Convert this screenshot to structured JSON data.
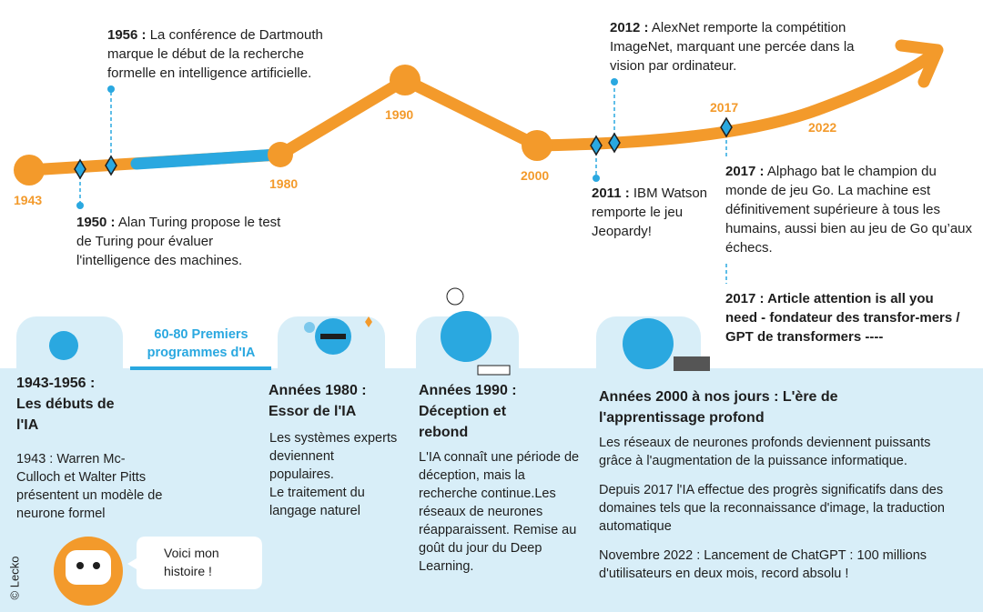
{
  "timeline": {
    "labels": [
      "1943",
      "1980",
      "1990",
      "2000",
      "2017",
      "2022"
    ],
    "events": [
      {
        "date": "1956 :",
        "text": "La conférence de Dartmouth marque le début de la recherche formelle en intelligence artificielle."
      },
      {
        "date": "1950 :",
        "text": "Alan Turing propose le test de Turing pour évaluer l'intelligence des machines."
      },
      {
        "date": "2011 :",
        "text": "IBM Watson remporte le jeu Jeopardy!"
      },
      {
        "date": "2012 :",
        "text": "AlexNet remporte la compétition ImageNet, marquant une percée dans la vision par ordinateur."
      },
      {
        "date": "2017 :",
        "text": "Alphago bat le champion du monde de jeu Go. La machine est définitivement supérieure à tous les humains, aussi bien au jeu de Go qu’aux échecs."
      },
      {
        "date": "2017 :",
        "text": "Article attention is all you need - fondateur des transfor-mers / GPT de transformers ----"
      }
    ]
  },
  "interlude": "60-80 Premiers programmes d'IA",
  "periods": [
    {
      "title": "1943-1956 : Les débuts de l'IA",
      "paragraphs": [
        "1943 : Warren Mc-Culloch et Walter Pitts présentent un modèle de neurone formel"
      ]
    },
    {
      "title": "Années 1980 : Essor de l'IA",
      "paragraphs": [
        "Les systèmes experts deviennent populaires.",
        "Le traitement du langage naturel"
      ]
    },
    {
      "title": "Années 1990 : Déception et rebond",
      "paragraphs": [
        "L'IA connaît une période de déception, mais la recherche continue.Les réseaux de neurones réapparaissent. Remise au goût du jour du Deep Learning."
      ]
    },
    {
      "title": "Années 2000 à nos jours : L'ère de l'apprentissage profond",
      "paragraphs": [
        "Les réseaux de neurones profonds deviennent puissants grâce à l'augmentation de la puissance informatique.",
        "Depuis 2017 l'IA effectue des progrès significatifs dans des domaines tels que la reconnaissance d'image, la traduction automatique",
        "Novembre 2022 : Lancement de ChatGPT : 100 millions d'utilisateurs en deux mois, record absolu !"
      ]
    }
  ],
  "bubble": "Voici mon histoire !",
  "credit": "© Lecko"
}
